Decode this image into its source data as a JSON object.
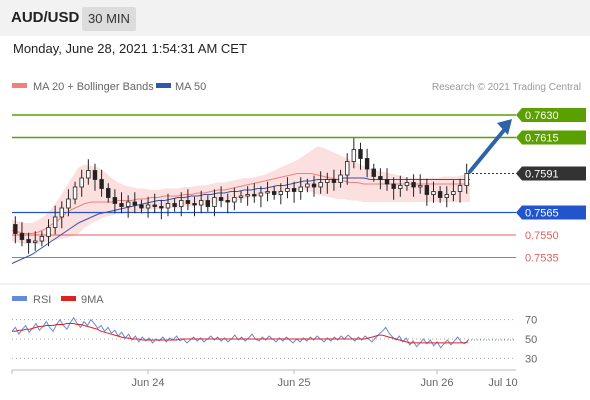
{
  "header": {
    "symbol": "AUD/USD",
    "timeframe": "30 MIN",
    "datetime": "Monday, June 28, 2021 1:54:31 AM CET"
  },
  "legend": {
    "ma20_label": "MA 20 + Bollinger Bands",
    "ma50_label": "MA 50",
    "credit": "Research © 2021 Trading Central",
    "rsi_label": "RSI",
    "rsi_ma_label": "9MA"
  },
  "colors": {
    "resistance": "#5aa000",
    "support": "#2255cc",
    "minor_support": "#e06060",
    "ma20": "#f08080",
    "ma50": "#3355aa",
    "candle": "#222222",
    "arrow": "#2e63a8",
    "rsi": "#6688dd",
    "rsi_ma": "#dd2222"
  },
  "chart_data": [
    {
      "type": "line",
      "ylim": [
        0.752,
        0.764
      ],
      "x_ticks": [
        "Jun 24",
        "Jun 25",
        "Jun 26",
        "Jul 10"
      ],
      "levels": [
        {
          "value": 0.763,
          "label": "0.7630",
          "kind": "resistance"
        },
        {
          "value": 0.7615,
          "label": "0.7615",
          "kind": "resistance"
        },
        {
          "value": 0.7591,
          "label": "0.7591",
          "kind": "current"
        },
        {
          "value": 0.7565,
          "label": "0.7565",
          "kind": "support"
        },
        {
          "value": 0.755,
          "label": "0.7550",
          "kind": "minor_support"
        },
        {
          "value": 0.7535,
          "label": "0.7535",
          "kind": "minor_support"
        }
      ],
      "price_path": [
        0.7557,
        0.7551,
        0.7547,
        0.7545,
        0.7546,
        0.7549,
        0.7555,
        0.7562,
        0.7568,
        0.7574,
        0.7582,
        0.7588,
        0.7593,
        0.7587,
        0.7581,
        0.7575,
        0.7571,
        0.7569,
        0.7572,
        0.757,
        0.7568,
        0.757,
        0.7569,
        0.7568,
        0.7571,
        0.7569,
        0.7573,
        0.7571,
        0.757,
        0.7573,
        0.7569,
        0.7575,
        0.7573,
        0.7572,
        0.7575,
        0.7576,
        0.7577,
        0.7576,
        0.7578,
        0.7579,
        0.7577,
        0.7579,
        0.7581,
        0.7579,
        0.7582,
        0.7584,
        0.7582,
        0.7585,
        0.7587,
        0.7585,
        0.759,
        0.7599,
        0.7607,
        0.7601,
        0.7594,
        0.7589,
        0.7587,
        0.7584,
        0.7581,
        0.7583,
        0.7585,
        0.7582,
        0.7583,
        0.7577,
        0.7579,
        0.7575,
        0.7577,
        0.7579,
        0.7583,
        0.7591
      ],
      "ma20": [
        0.7553,
        0.7552,
        0.7551,
        0.7551,
        0.7552,
        0.7554,
        0.7557,
        0.756,
        0.7564,
        0.7567,
        0.7569,
        0.7571,
        0.7572,
        0.7572,
        0.7572,
        0.7572,
        0.7573,
        0.7573,
        0.7573,
        0.7574,
        0.7574,
        0.7575,
        0.7575,
        0.7576,
        0.7576,
        0.7576,
        0.7577,
        0.7577,
        0.7578,
        0.7578,
        0.7579,
        0.758,
        0.758,
        0.7581,
        0.7582,
        0.7583,
        0.7584,
        0.7585,
        0.7586,
        0.7587,
        0.7588,
        0.7589,
        0.759,
        0.7591,
        0.7591,
        0.7591,
        0.759,
        0.7589,
        0.7588,
        0.7587,
        0.7586,
        0.7585,
        0.7585,
        0.7584,
        0.7584,
        0.7584,
        0.7584,
        0.7584,
        0.7584,
        0.7584,
        0.7584,
        0.7584,
        0.7584,
        0.7584,
        0.7584,
        0.7584,
        0.7584,
        0.7584,
        0.7584,
        0.7584
      ],
      "ma50": [
        0.7531,
        0.7533,
        0.7535,
        0.7537,
        0.754,
        0.7543,
        0.7546,
        0.7549,
        0.7552,
        0.7555,
        0.7558,
        0.756,
        0.7562,
        0.7564,
        0.7565,
        0.7566,
        0.7567,
        0.7568,
        0.7569,
        0.757,
        0.7571,
        0.7572,
        0.7573,
        0.7573,
        0.7574,
        0.7575,
        0.7575,
        0.7576,
        0.7576,
        0.7577,
        0.7577,
        0.7578,
        0.7578,
        0.7579,
        0.7579,
        0.758,
        0.758,
        0.7581,
        0.7581,
        0.7582,
        0.7583,
        0.7583,
        0.7584,
        0.7585,
        0.7586,
        0.7586,
        0.7587,
        0.7587,
        0.7587,
        0.7587,
        0.7588,
        0.7588,
        0.7588,
        0.7588,
        0.7587,
        0.7587,
        0.7587,
        0.7587,
        0.7587,
        0.7587,
        0.7587,
        0.7587,
        0.7587,
        0.7587,
        0.7587,
        0.7587,
        0.7587,
        0.7587,
        0.7587,
        0.7587
      ],
      "bb_upper": [
        0.756,
        0.7559,
        0.7558,
        0.7558,
        0.756,
        0.7563,
        0.7568,
        0.7574,
        0.7581,
        0.7588,
        0.7595,
        0.7597,
        0.7596,
        0.7595,
        0.7592,
        0.7588,
        0.7585,
        0.7583,
        0.7582,
        0.7581,
        0.7581,
        0.758,
        0.758,
        0.7581,
        0.7581,
        0.7581,
        0.7582,
        0.7582,
        0.7583,
        0.7583,
        0.7584,
        0.7585,
        0.7585,
        0.7586,
        0.7587,
        0.7588,
        0.7588,
        0.7589,
        0.759,
        0.7592,
        0.7594,
        0.7596,
        0.7598,
        0.76,
        0.7603,
        0.7606,
        0.7609,
        0.7608,
        0.7606,
        0.7604,
        0.7602,
        0.76,
        0.7598,
        0.7596,
        0.7594,
        0.7593,
        0.7592,
        0.7591,
        0.759,
        0.7589,
        0.7588,
        0.7588,
        0.7588,
        0.7588,
        0.7588,
        0.7589,
        0.7589,
        0.7589,
        0.759,
        0.7591
      ],
      "bb_lower": [
        0.7546,
        0.7545,
        0.7544,
        0.7544,
        0.7544,
        0.7545,
        0.7546,
        0.7547,
        0.7548,
        0.7549,
        0.7551,
        0.7555,
        0.7558,
        0.756,
        0.7562,
        0.7563,
        0.7564,
        0.7565,
        0.7565,
        0.7566,
        0.7566,
        0.7567,
        0.7567,
        0.7568,
        0.7568,
        0.7568,
        0.7569,
        0.7569,
        0.757,
        0.757,
        0.7571,
        0.7572,
        0.7572,
        0.7572,
        0.7573,
        0.7574,
        0.7575,
        0.7576,
        0.7577,
        0.7578,
        0.7578,
        0.7579,
        0.7579,
        0.758,
        0.758,
        0.7579,
        0.7577,
        0.7576,
        0.7575,
        0.7574,
        0.7574,
        0.7573,
        0.7573,
        0.7572,
        0.7572,
        0.7572,
        0.7572,
        0.7572,
        0.7572,
        0.7572,
        0.7572,
        0.7572,
        0.7572,
        0.7572,
        0.7572,
        0.7572,
        0.7572,
        0.7572,
        0.7572,
        0.7572
      ],
      "arrow_target": 0.763
    },
    {
      "type": "line",
      "ylim": [
        20,
        80
      ],
      "levels": [
        70,
        50,
        30
      ],
      "rsi": [
        58,
        62,
        55,
        60,
        64,
        57,
        61,
        66,
        59,
        63,
        68,
        62,
        58,
        65,
        70,
        64,
        60,
        67,
        72,
        66,
        62,
        68,
        64,
        70,
        66,
        61,
        64,
        58,
        62,
        56,
        59,
        53,
        57,
        51,
        55,
        49,
        53,
        47,
        52,
        48,
        51,
        46,
        50,
        48,
        52,
        47,
        51,
        49,
        53,
        48,
        50,
        46,
        49,
        52,
        48,
        51,
        47,
        50,
        53,
        49,
        52,
        48,
        51,
        47,
        50,
        54,
        49,
        52,
        48,
        51,
        55,
        50,
        48,
        52,
        49,
        53,
        50,
        47,
        51,
        48,
        52,
        49,
        46,
        50,
        47,
        51,
        48,
        52,
        49,
        53,
        50,
        47,
        51,
        48,
        52,
        49,
        53,
        50,
        54,
        51,
        48,
        52,
        49,
        53,
        50,
        47,
        51,
        55,
        58,
        62,
        56,
        52,
        49,
        53,
        47,
        51,
        44,
        48,
        42,
        46,
        50,
        45,
        49,
        43,
        47,
        41,
        45,
        49,
        44,
        48,
        52,
        47,
        45,
        49
      ],
      "rsi_ma": [
        58,
        58,
        59,
        59,
        60,
        60,
        61,
        62,
        63,
        63,
        64,
        64,
        64,
        65,
        65,
        65,
        66,
        66,
        66,
        65,
        65,
        64,
        63,
        62,
        61,
        60,
        58,
        57,
        56,
        55,
        54,
        53,
        52,
        51,
        51,
        50,
        50,
        50,
        49,
        49,
        49,
        49,
        49,
        49,
        49,
        49,
        49,
        49,
        49,
        50,
        50,
        50,
        50,
        50,
        50,
        50,
        50,
        50,
        50,
        50,
        50,
        50,
        50,
        50,
        50,
        50,
        50,
        50,
        50,
        50,
        50,
        50,
        50,
        50,
        50,
        50,
        50,
        50,
        50,
        50,
        50,
        50,
        50,
        50,
        50,
        50,
        50,
        50,
        50,
        50,
        50,
        50,
        50,
        50,
        50,
        50,
        50,
        50,
        50,
        50,
        50,
        50,
        50,
        50,
        51,
        52,
        53,
        54,
        54,
        53,
        52,
        51,
        50,
        49,
        48,
        47,
        46,
        46,
        46,
        46,
        46,
        46,
        46,
        46,
        46,
        46,
        46,
        46,
        46,
        46,
        46,
        46,
        46,
        47
      ]
    }
  ]
}
